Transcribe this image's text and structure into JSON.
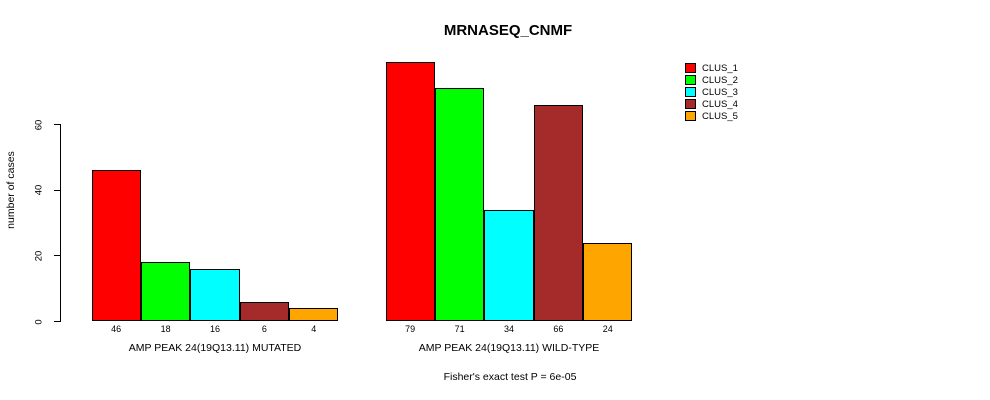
{
  "chart_data": {
    "type": "bar",
    "title": "MRNASEQ_CNMF",
    "ylabel": "number of cases",
    "xlabel": "",
    "ylim": [
      0,
      60
    ],
    "yticks": [
      0,
      20,
      40,
      60
    ],
    "grid": false,
    "legend_position": "right",
    "series_outline_color": "#000000",
    "legend": [
      {
        "label": "CLUS_1",
        "color": "#FF0000"
      },
      {
        "label": "CLUS_2",
        "color": "#00FF00"
      },
      {
        "label": "CLUS_3",
        "color": "#00FFFF"
      },
      {
        "label": "CLUS_4",
        "color": "#A52A2A"
      },
      {
        "label": "CLUS_5",
        "color": "#FFA500"
      }
    ],
    "groups": [
      {
        "label": "AMP PEAK 24(19Q13.11) MUTATED",
        "values": [
          46,
          18,
          16,
          6,
          4
        ]
      },
      {
        "label": "AMP PEAK 24(19Q13.11) WILD-TYPE",
        "values": [
          79,
          71,
          34,
          66,
          24
        ]
      }
    ],
    "annotation": "Fisher's exact test P = 6e-05"
  }
}
